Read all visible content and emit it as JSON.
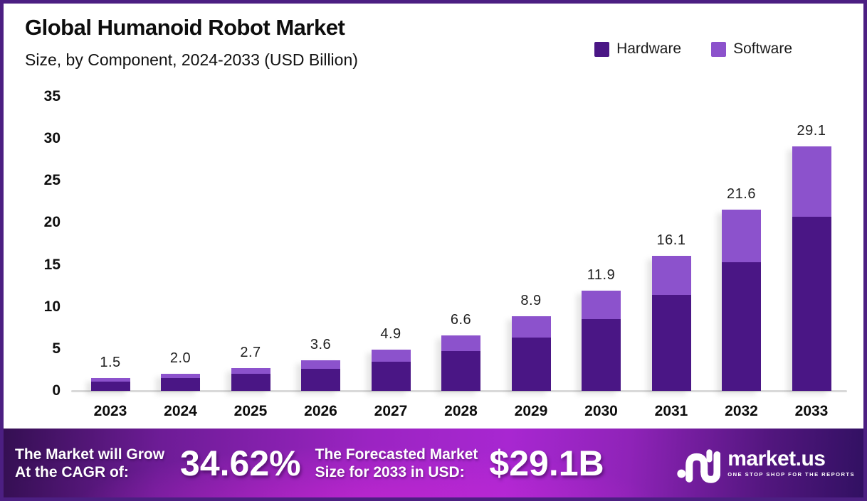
{
  "page": {
    "title": "Global Humanoid Robot Market",
    "subtitle": "Size, by Component, 2024-2033 (USD Billion)"
  },
  "legend": {
    "items": [
      {
        "label": "Hardware",
        "color": "#4a1685"
      },
      {
        "label": "Software",
        "color": "#8c52cc"
      }
    ]
  },
  "chart_data": {
    "type": "bar",
    "stacked": true,
    "title": "Global Humanoid Robot Market",
    "subtitle": "Size, by Component, 2024-2033 (USD Billion)",
    "xlabel": "",
    "ylabel": "USD Billion",
    "categories": [
      "2023",
      "2024",
      "2025",
      "2026",
      "2027",
      "2028",
      "2029",
      "2030",
      "2031",
      "2032",
      "2033"
    ],
    "series": [
      {
        "name": "Hardware",
        "color": "#4a1685",
        "values": [
          1.1,
          1.5,
          2.0,
          2.6,
          3.5,
          4.7,
          6.3,
          8.5,
          11.4,
          15.3,
          20.7
        ]
      },
      {
        "name": "Software",
        "color": "#8c52cc",
        "values": [
          0.4,
          0.5,
          0.7,
          1.0,
          1.4,
          1.9,
          2.6,
          3.4,
          4.7,
          6.3,
          8.4
        ]
      }
    ],
    "totals": [
      1.5,
      2.0,
      2.7,
      3.6,
      4.9,
      6.6,
      8.9,
      11.9,
      16.1,
      21.6,
      29.1
    ],
    "total_labels": [
      "1.5",
      "2.0",
      "2.7",
      "3.6",
      "4.9",
      "6.6",
      "8.9",
      "11.9",
      "16.1",
      "21.6",
      "29.1"
    ],
    "ylim": [
      0,
      35
    ],
    "yticks": [
      0,
      5,
      10,
      15,
      20,
      25,
      30,
      35
    ],
    "grid": false,
    "legend_position": "top-right"
  },
  "banner": {
    "cagr_label_line1": "The Market will Grow",
    "cagr_label_line2": "At the CAGR of:",
    "cagr_value": "34.62%",
    "forecast_label_line1": "The Forecasted Market",
    "forecast_label_line2": "Size for 2033 in USD:",
    "forecast_value": "$29.1B",
    "logo_text": "market.us",
    "logo_tagline": "ONE STOP SHOP FOR THE REPORTS"
  },
  "colors": {
    "hardware": "#4a1685",
    "software": "#8c52cc",
    "page_border": "#4c1f82",
    "baseline": "#d9d9d9",
    "banner_magenta": "#a827d1",
    "banner_dark_purple": "#340f52"
  }
}
